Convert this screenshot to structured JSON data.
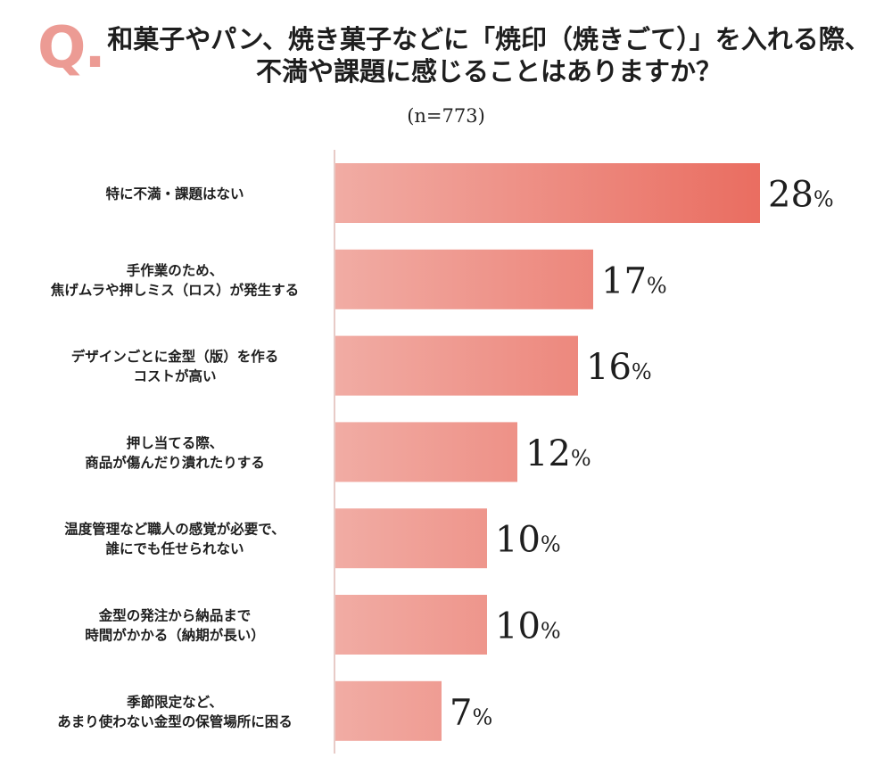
{
  "header": {
    "q_mark": "Q.",
    "title_line1": "和菓子やパン、焼き菓子などに「焼印（焼きごて）」を入れる際、",
    "title_line2": "不満や課題に感じることはありますか？",
    "sample_size": "(n=773)"
  },
  "colors": {
    "bar_start": "#f1aca4",
    "bar_end": "#e9695c",
    "axis": "#d9a8a2",
    "q_mark": "#ec9b94"
  },
  "chart_data": {
    "type": "bar",
    "orientation": "horizontal",
    "title": "和菓子やパン、焼き菓子などに「焼印（焼きごて）」を入れる際、不満や課題に感じることはありますか？",
    "subtitle": "(n=773)",
    "unit": "%",
    "xlim": [
      0,
      30
    ],
    "grid": false,
    "legend": "none",
    "categories": [
      [
        "特に不満・課題はない"
      ],
      [
        "手作業のため、",
        "焦げムラや押しミス（ロス）が発生する"
      ],
      [
        "デザインごとに金型（版）を作る",
        "コストが高い"
      ],
      [
        "押し当てる際、",
        "商品が傷んだり潰れたりする"
      ],
      [
        "温度管理など職人の感覚が必要で、",
        "誰にでも任せられない"
      ],
      [
        "金型の発注から納品まで",
        "時間がかかる（納期が長い）"
      ],
      [
        "季節限定など、",
        "あまり使わない金型の保管場所に困る"
      ]
    ],
    "values": [
      28,
      17,
      16,
      12,
      10,
      10,
      7
    ]
  }
}
